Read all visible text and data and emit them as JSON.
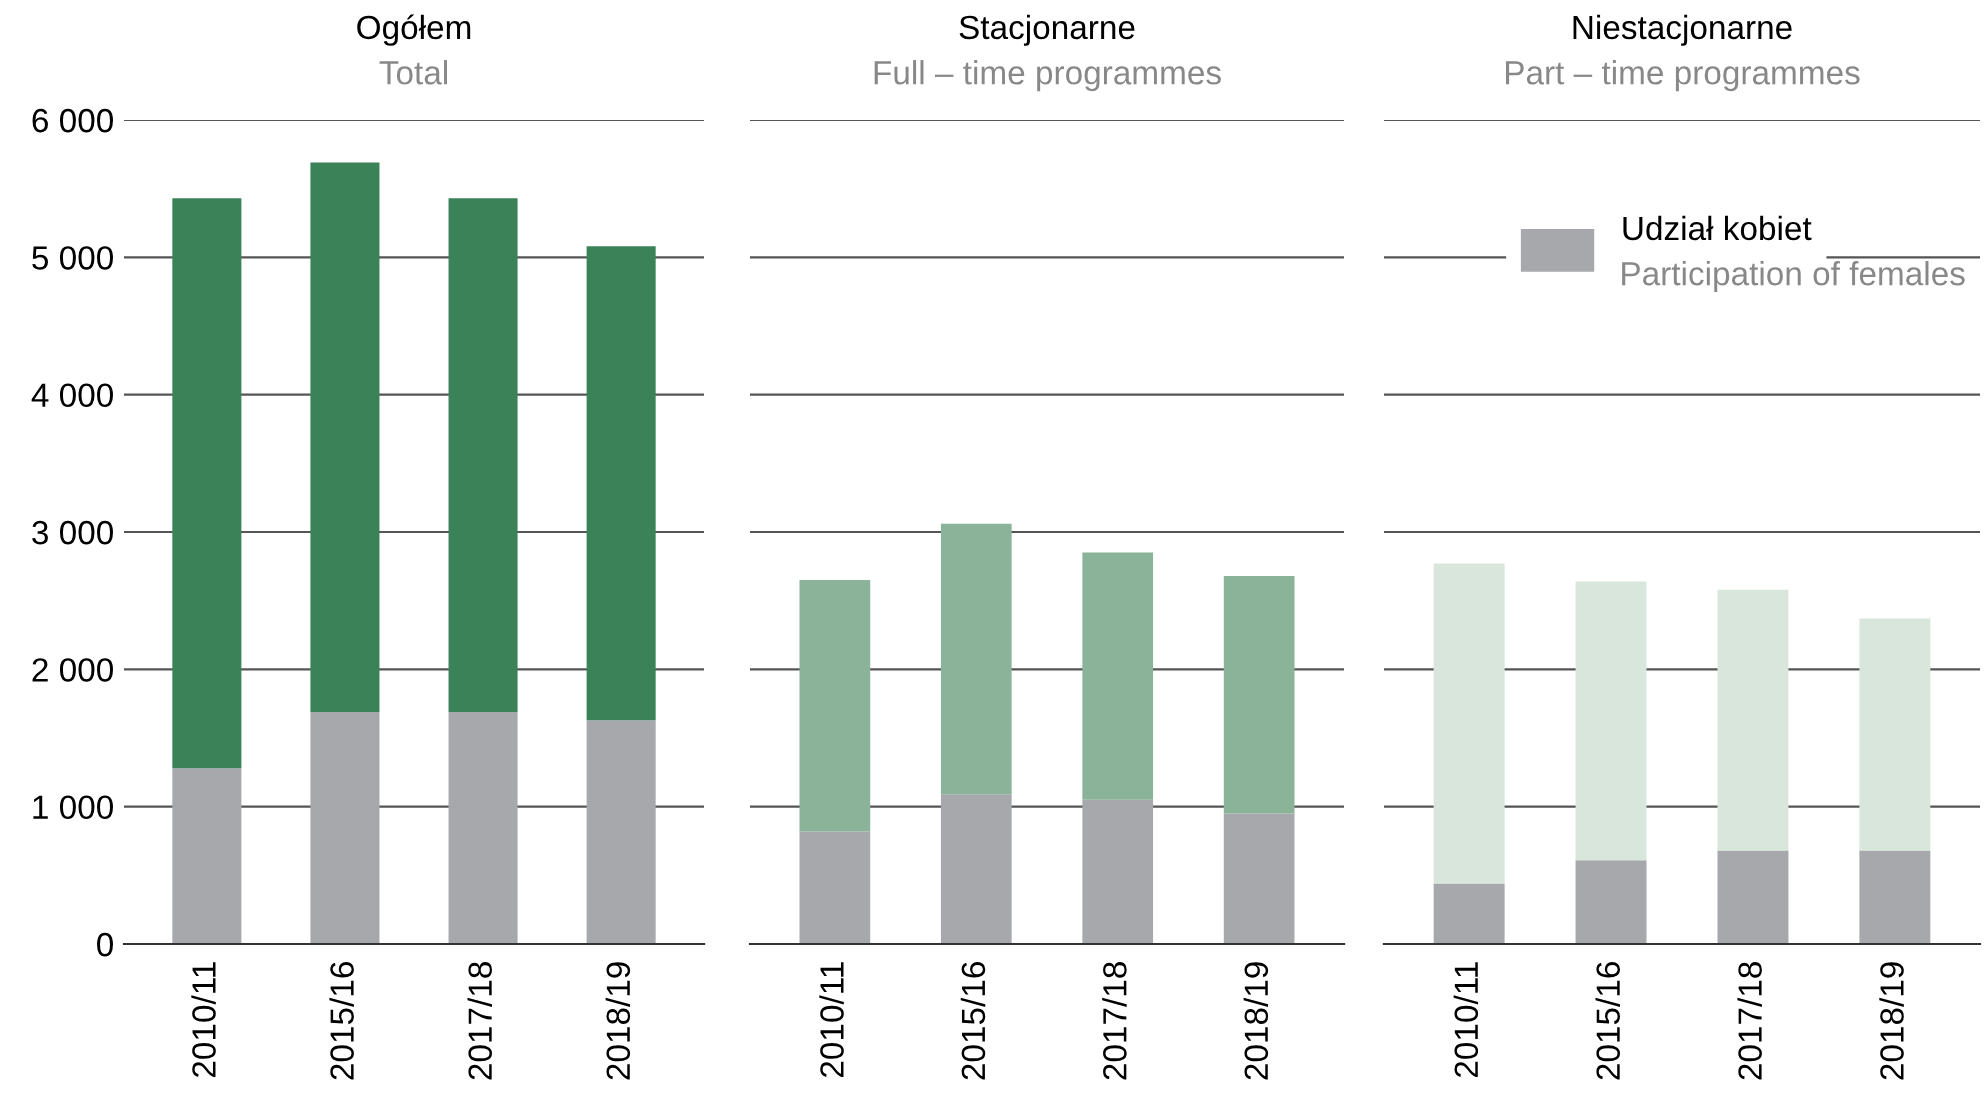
{
  "chart_data": [
    {
      "type": "bar",
      "stacked": true,
      "title": "Ogółem",
      "subtitle": "Total",
      "categories": [
        "2010/11",
        "2015/16",
        "2017/18",
        "2018/19"
      ],
      "ylim": [
        0,
        6000
      ],
      "yticks": [
        {
          "value": 0,
          "label": "0"
        },
        {
          "value": 1000,
          "label": "1 000"
        },
        {
          "value": 2000,
          "label": "2 000"
        },
        {
          "value": 3000,
          "label": "3 000"
        },
        {
          "value": 4000,
          "label": "4 000"
        },
        {
          "value": 5000,
          "label": "5 000"
        },
        {
          "value": 6000,
          "label": "6 000"
        }
      ],
      "grid": "y",
      "series": [
        {
          "color": "#a7a8ab",
          "values": [
            1280,
            1690,
            1690,
            1630
          ]
        },
        {
          "color": "#3b8259",
          "values": [
            4150,
            4000,
            3740,
            3450
          ]
        }
      ]
    },
    {
      "type": "bar",
      "stacked": true,
      "title": "Stacjonarne",
      "subtitle": "Full – time programmes",
      "categories": [
        "2010/11",
        "2015/16",
        "2017/18",
        "2018/19"
      ],
      "ylim": [
        0,
        6000
      ],
      "tick_labels": "x",
      "grid": "y",
      "series": [
        {
          "color": "#a7a8ab",
          "values": [
            820,
            1090,
            1050,
            950
          ]
        },
        {
          "color": "#8ab39a",
          "values": [
            1830,
            1970,
            1800,
            1730
          ]
        }
      ]
    },
    {
      "type": "bar",
      "stacked": true,
      "title": "Niestacjonarne",
      "subtitle": "Part – time programmes",
      "categories": [
        "2010/11",
        "2015/16",
        "2017/18",
        "2018/19"
      ],
      "ylim": [
        0,
        6000
      ],
      "tick_labels": "x",
      "grid": "y",
      "legend": "top right",
      "legend_title": "Participation of females",
      "series": [
        {
          "name": "Udział kobiet",
          "color": "#a7a8ab",
          "values": [
            440,
            610,
            680,
            680
          ]
        },
        {
          "color": "#d9e6dc",
          "values": [
            2330,
            2030,
            1900,
            1690
          ]
        }
      ]
    }
  ]
}
